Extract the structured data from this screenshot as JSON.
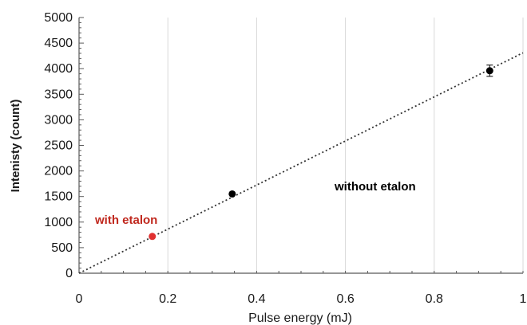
{
  "chart_data": {
    "type": "scatter",
    "xlabel": "Pulse energy (mJ)",
    "ylabel": "Intenisty (count)",
    "xlim": [
      0,
      1
    ],
    "ylim": [
      0,
      5000
    ],
    "x_ticks": [
      "0",
      "0.2",
      "0.4",
      "0.6",
      "0.8",
      "1"
    ],
    "y_ticks": [
      "0",
      "500",
      "1000",
      "1500",
      "2000",
      "2500",
      "3000",
      "3500",
      "4000",
      "4500",
      "5000"
    ],
    "grid": "vertical",
    "series": [
      {
        "name": "with etalon",
        "color": "#e03030",
        "points": [
          {
            "x": 0.165,
            "y": 720
          }
        ]
      },
      {
        "name": "without etalon",
        "color": "#000000",
        "points": [
          {
            "x": 0.345,
            "y": 1550
          },
          {
            "x": 0.925,
            "y": 3960,
            "err": 110
          }
        ]
      }
    ],
    "trendline": {
      "style": "dotted",
      "color": "#333333",
      "x0": 0,
      "y0": 0,
      "x1": 1,
      "y1": 4310
    },
    "annotations": [
      {
        "text": "with etalon",
        "color": "#c0281e"
      },
      {
        "text": "without etalon",
        "color": "#000000"
      }
    ]
  }
}
